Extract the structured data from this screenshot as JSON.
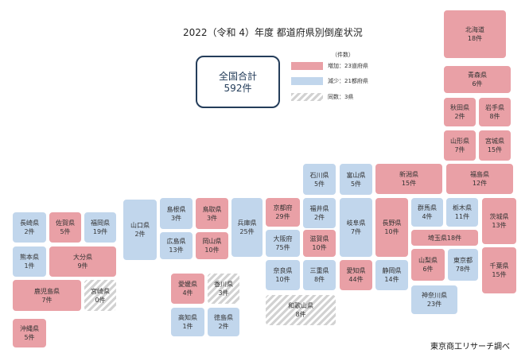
{
  "title": "2022（令和 4）年度 都道府県別倒産状況",
  "total": {
    "label": "全国合計",
    "value": "592件"
  },
  "legend": {
    "unit": "（件数）",
    "increase": "増加：23道府県",
    "decrease": "減少：21都府県",
    "same": "同数：3県"
  },
  "colors": {
    "increase": "#e9a0a6",
    "decrease": "#c1d6ec",
    "same": "#d2d2d2",
    "total_border": "#243d5a"
  },
  "prefectures": {
    "hokkaido": {
      "name": "北海道",
      "count": "18件"
    },
    "aomori": {
      "name": "青森県",
      "count": "6件"
    },
    "akita": {
      "name": "秋田県",
      "count": "2件"
    },
    "iwate": {
      "name": "岩手県",
      "count": "8件"
    },
    "yamagata": {
      "name": "山形県",
      "count": "7件"
    },
    "miyagi": {
      "name": "宮城県",
      "count": "15件"
    },
    "fukushima": {
      "name": "福島県",
      "count": "12件"
    },
    "niigata": {
      "name": "新潟県",
      "count": "15件"
    },
    "ishikawa": {
      "name": "石川県",
      "count": "5件"
    },
    "toyama": {
      "name": "富山県",
      "count": "5件"
    },
    "fukui": {
      "name": "福井県",
      "count": "2件"
    },
    "gifu": {
      "name": "岐阜県",
      "count": "7件"
    },
    "nagano": {
      "name": "長野県",
      "count": "10件"
    },
    "gunma": {
      "name": "群馬県",
      "count": "4件"
    },
    "tochigi": {
      "name": "栃木県",
      "count": "11件"
    },
    "ibaraki": {
      "name": "茨城県",
      "count": "13件"
    },
    "saitama": {
      "name": "埼玉県",
      "count": "18件"
    },
    "chiba": {
      "name": "千葉県",
      "count": "15件"
    },
    "tokyo": {
      "name": "東京都",
      "count": "78件"
    },
    "kanagawa": {
      "name": "神奈川県",
      "count": "23件"
    },
    "yamanashi": {
      "name": "山梨県",
      "count": "6件"
    },
    "shizuoka": {
      "name": "静岡県",
      "count": "14件"
    },
    "aichi": {
      "name": "愛知県",
      "count": "44件"
    },
    "mie": {
      "name": "三重県",
      "count": "8件"
    },
    "shiga": {
      "name": "滋賀県",
      "count": "10件"
    },
    "kyoto": {
      "name": "京都府",
      "count": "29件"
    },
    "osaka": {
      "name": "大阪府",
      "count": "75件"
    },
    "nara": {
      "name": "奈良県",
      "count": "10件"
    },
    "wakayama": {
      "name": "和歌山県",
      "count": "8件"
    },
    "hyogo": {
      "name": "兵庫県",
      "count": "25件"
    },
    "tottori": {
      "name": "鳥取県",
      "count": "3件"
    },
    "shimane": {
      "name": "島根県",
      "count": "3件"
    },
    "okayama": {
      "name": "岡山県",
      "count": "10件"
    },
    "hiroshima": {
      "name": "広島県",
      "count": "13件"
    },
    "yamaguchi": {
      "name": "山口県",
      "count": "2件"
    },
    "kagawa": {
      "name": "香川県",
      "count": "3件"
    },
    "ehime": {
      "name": "愛媛県",
      "count": "4件"
    },
    "tokushima": {
      "name": "徳島県",
      "count": "2件"
    },
    "kochi": {
      "name": "高知県",
      "count": "1件"
    },
    "fukuoka": {
      "name": "福岡県",
      "count": "19件"
    },
    "saga": {
      "name": "佐賀県",
      "count": "5件"
    },
    "nagasaki": {
      "name": "長崎県",
      "count": "2件"
    },
    "kumamoto": {
      "name": "熊本県",
      "count": "1件"
    },
    "oita": {
      "name": "大分県",
      "count": "9件"
    },
    "miyazaki": {
      "name": "宮崎県",
      "count": "0件"
    },
    "kagoshima": {
      "name": "鹿児島県",
      "count": "7件"
    },
    "okinawa": {
      "name": "沖縄県",
      "count": "5件"
    }
  },
  "source": "東京商工リサーチ調べ"
}
